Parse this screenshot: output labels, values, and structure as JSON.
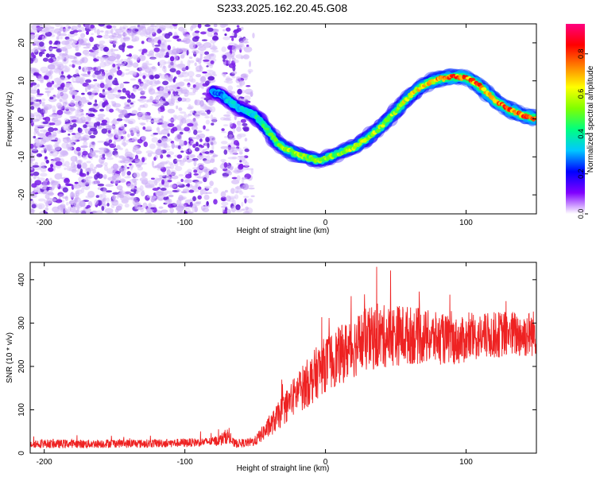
{
  "title": "S233.2025.162.20.45.G08",
  "chart_data": [
    {
      "type": "heatmap",
      "xlabel": "Height of straight line (km)",
      "ylabel": "Frequency (Hz)",
      "xlim": [
        -210,
        150
      ],
      "ylim": [
        -25,
        25
      ],
      "xticks": [
        -200,
        -100,
        0,
        100
      ],
      "yticks": [
        -20,
        -10,
        0,
        10,
        20
      ],
      "grid": false,
      "colorbar": {
        "label": "Normalized spectral amplitude",
        "range": [
          0,
          0.95
        ],
        "ticks": [
          0.0,
          0.2,
          0.4,
          0.6,
          0.8
        ],
        "colormap": [
          "#ffffff",
          "#8000ff",
          "#0000ff",
          "#00c8ff",
          "#00ff80",
          "#80ff00",
          "#ffff00",
          "#ff8000",
          "#ff0000",
          "#ff0080"
        ]
      },
      "ridge": {
        "x": [
          -80,
          -75,
          -70,
          -60,
          -50,
          -45,
          -40,
          -35,
          -30,
          -25,
          -20,
          -15,
          -10,
          -5,
          0,
          10,
          20,
          30,
          40,
          50,
          60,
          70,
          80,
          90,
          100,
          110,
          120,
          130,
          140,
          150
        ],
        "y": [
          7,
          6.5,
          5,
          2.5,
          1,
          -1,
          -3.5,
          -6,
          -7.5,
          -8.5,
          -9.5,
          -10,
          -10.5,
          -11,
          -10.5,
          -9,
          -7.5,
          -5,
          -2,
          2,
          6,
          9,
          10.5,
          11,
          11,
          8.5,
          5,
          2.5,
          1,
          0
        ],
        "amplitude": [
          0.3,
          0.3,
          0.35,
          0.35,
          0.4,
          0.45,
          0.5,
          0.5,
          0.55,
          0.6,
          0.6,
          0.55,
          0.55,
          0.55,
          0.55,
          0.55,
          0.6,
          0.6,
          0.6,
          0.6,
          0.65,
          0.7,
          0.75,
          0.8,
          0.8,
          0.8,
          0.8,
          0.8,
          0.8,
          0.8
        ]
      },
      "noise_region": {
        "x_start": -210,
        "x_end": -50,
        "gap": [
          -78,
          -73
        ]
      }
    },
    {
      "type": "line",
      "xlabel": "Height of straight line (km)",
      "ylabel": "SNR (10 * v/v)",
      "xlim": [
        -210,
        150
      ],
      "ylim": [
        0,
        440
      ],
      "xticks": [
        -200,
        -100,
        0,
        100
      ],
      "yticks": [
        0,
        100,
        200,
        300,
        400
      ],
      "grid": false,
      "series": [
        {
          "color": "#ee2222",
          "x": [
            -210,
            -200,
            -190,
            -180,
            -170,
            -160,
            -150,
            -140,
            -130,
            -120,
            -110,
            -100,
            -90,
            -80,
            -75,
            -70,
            -65,
            -60,
            -55,
            -50,
            -45,
            -40,
            -35,
            -30,
            -25,
            -20,
            -15,
            -10,
            -5,
            0,
            5,
            10,
            15,
            20,
            25,
            30,
            35,
            40,
            45,
            50,
            55,
            60,
            65,
            70,
            75,
            80,
            85,
            90,
            95,
            100,
            105,
            110,
            115,
            120,
            125,
            130,
            135,
            140,
            145,
            150
          ],
          "y": [
            22,
            22,
            21,
            22,
            21,
            22,
            23,
            22,
            22,
            23,
            23,
            24,
            25,
            27,
            30,
            40,
            22,
            23,
            24,
            28,
            45,
            60,
            80,
            100,
            120,
            140,
            155,
            170,
            190,
            205,
            215,
            225,
            235,
            245,
            255,
            262,
            265,
            268,
            270,
            272,
            273,
            272,
            270,
            268,
            266,
            264,
            262,
            260,
            258,
            262,
            265,
            268,
            270,
            272,
            274,
            276,
            274,
            272,
            275,
            278
          ],
          "noise": [
            10,
            10,
            10,
            10,
            10,
            10,
            10,
            10,
            10,
            10,
            10,
            10,
            10,
            10,
            14,
            18,
            10,
            10,
            10,
            12,
            18,
            24,
            30,
            36,
            42,
            48,
            54,
            60,
            62,
            64,
            66,
            68,
            70,
            72,
            74,
            74,
            74,
            74,
            72,
            72,
            70,
            68,
            66,
            64,
            62,
            60,
            58,
            56,
            54,
            54,
            54,
            54,
            54,
            54,
            54,
            54,
            54,
            54,
            54,
            54
          ]
        }
      ]
    }
  ]
}
